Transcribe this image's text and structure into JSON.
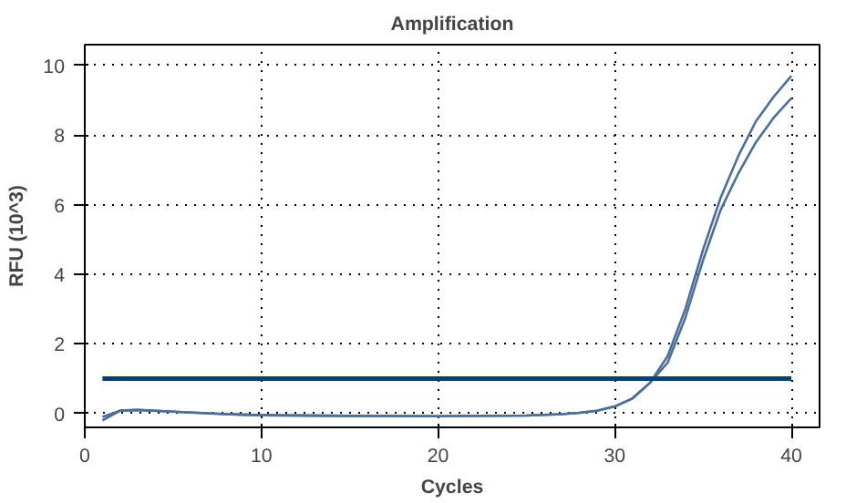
{
  "chart_data": {
    "type": "line",
    "title": "Amplification",
    "xlabel": "Cycles",
    "ylabel": "RFU (10^3)",
    "xlim": [
      0,
      41.6
    ],
    "ylim": [
      -0.4,
      10.6
    ],
    "xticks": [
      0,
      10,
      20,
      30,
      40
    ],
    "yticks": [
      0,
      2,
      4,
      6,
      8,
      10
    ],
    "grid": true,
    "line_style": "solid",
    "series": [
      {
        "color": "#4a6f9c",
        "x": [
          1,
          2,
          3,
          5,
          8,
          10,
          15,
          20,
          25,
          27,
          28,
          29,
          30,
          31,
          32,
          33,
          34,
          35,
          36,
          37,
          38,
          39,
          40
        ],
        "values": [
          -0.2,
          0.08,
          0.1,
          0.05,
          -0.02,
          -0.05,
          -0.07,
          -0.08,
          -0.06,
          -0.02,
          0.02,
          0.08,
          0.2,
          0.43,
          0.88,
          1.65,
          3.0,
          4.7,
          6.2,
          7.4,
          8.4,
          9.1,
          9.7
        ]
      },
      {
        "color": "#4a6f9c",
        "x": [
          1,
          2,
          3,
          5,
          8,
          10,
          15,
          20,
          25,
          27,
          28,
          29,
          30,
          31,
          32,
          33,
          34,
          35,
          36,
          37,
          38,
          39,
          40
        ],
        "values": [
          -0.1,
          0.08,
          0.1,
          0.05,
          -0.02,
          -0.05,
          -0.07,
          -0.08,
          -0.06,
          -0.02,
          0.02,
          0.08,
          0.2,
          0.43,
          0.88,
          1.46,
          2.75,
          4.4,
          5.85,
          6.9,
          7.8,
          8.5,
          9.06
        ]
      },
      {
        "color": "#003f7f",
        "x": [
          1,
          40
        ],
        "values": [
          1,
          1
        ]
      }
    ]
  }
}
